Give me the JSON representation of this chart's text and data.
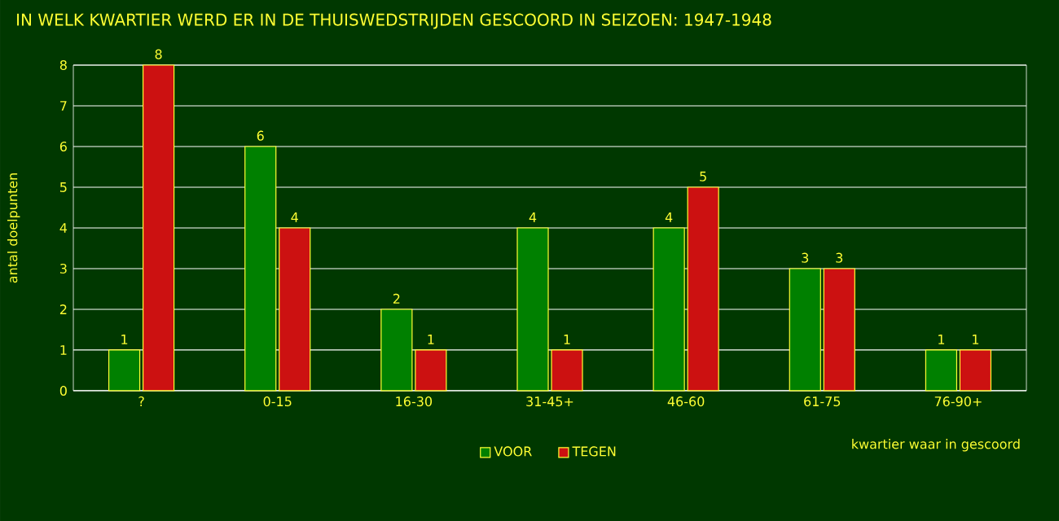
{
  "chart_data": {
    "type": "bar",
    "title": "IN WELK KWARTIER WERD ER IN DE THUISWEDSTRIJDEN GESCOORD IN SEIZOEN: 1947-1948",
    "xlabel": "kwartier waar in gescoord",
    "ylabel": "antal doelpunten",
    "categories": [
      "?",
      "0-15",
      "16-30",
      "31-45+",
      "46-60",
      "61-75",
      "76-90+"
    ],
    "series": [
      {
        "name": "VOOR",
        "color": "#008000",
        "values": [
          1,
          6,
          2,
          4,
          4,
          3,
          1
        ]
      },
      {
        "name": "TEGEN",
        "color": "#cc1111",
        "values": [
          8,
          4,
          1,
          1,
          5,
          3,
          1
        ]
      }
    ],
    "ylim": [
      0,
      8
    ],
    "yticks": [
      0,
      1,
      2,
      3,
      4,
      5,
      6,
      7,
      8
    ],
    "grid": "y",
    "legend": "bottom",
    "data_labels": true
  }
}
